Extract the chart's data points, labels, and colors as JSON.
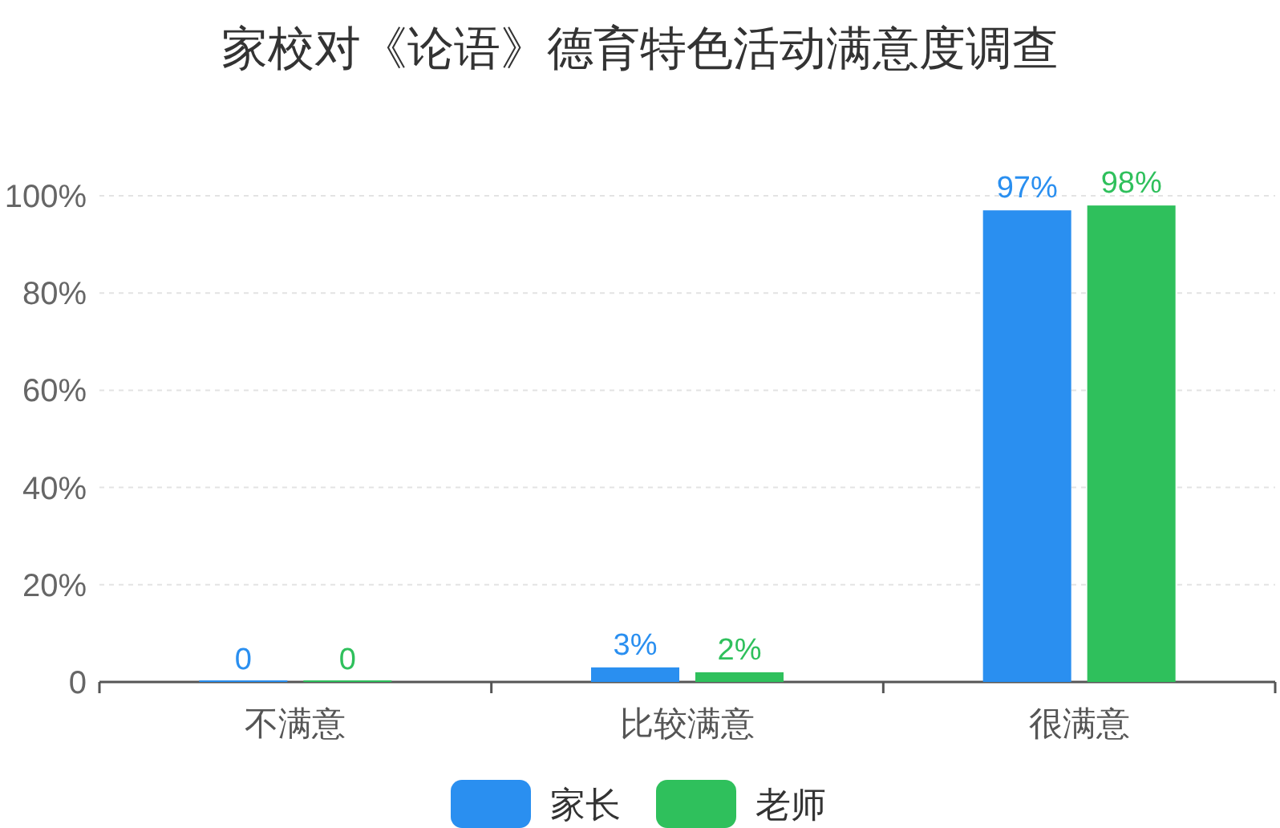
{
  "chart_data": {
    "type": "bar",
    "title": "家校对《论语》德育特色活动满意度调查",
    "categories": [
      "不满意",
      "比较满意",
      "很满意"
    ],
    "series": [
      {
        "name": "家长",
        "color": "#2a8ff0",
        "values": [
          0,
          3,
          97
        ],
        "value_labels": [
          "0",
          "3%",
          "97%"
        ]
      },
      {
        "name": "老师",
        "color": "#2fc05c",
        "values": [
          0,
          2,
          98
        ],
        "value_labels": [
          "0",
          "2%",
          "98%"
        ]
      }
    ],
    "ylim": [
      0,
      100
    ],
    "yticks": [
      {
        "value": 0,
        "label": "0"
      },
      {
        "value": 20,
        "label": "20%"
      },
      {
        "value": 40,
        "label": "40%"
      },
      {
        "value": 60,
        "label": "60%"
      },
      {
        "value": 80,
        "label": "80%"
      },
      {
        "value": 100,
        "label": "100%"
      }
    ],
    "grid": "y",
    "legend": "bottom"
  }
}
